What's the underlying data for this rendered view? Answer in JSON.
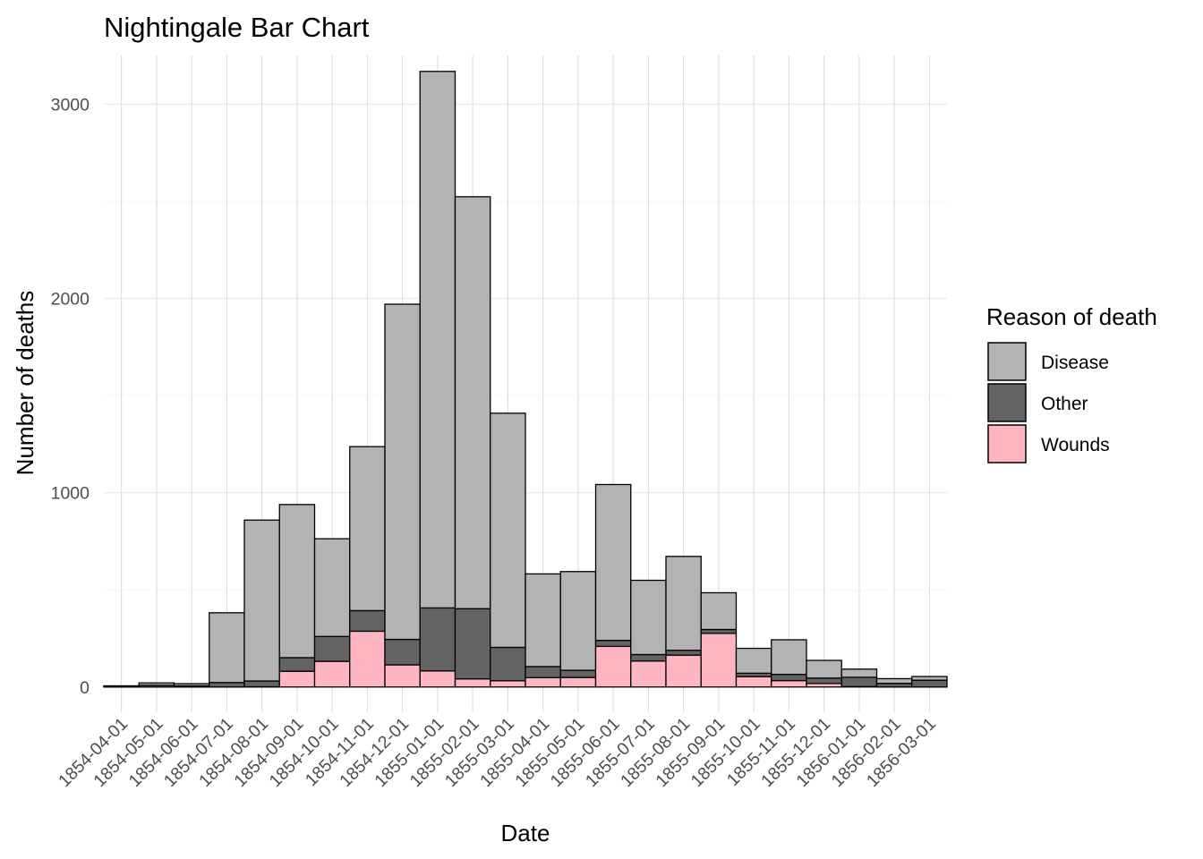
{
  "chart_data": {
    "type": "bar",
    "stacked": true,
    "title": "Nightingale Bar Chart",
    "xlabel": "Date",
    "ylabel": "Number of deaths",
    "ylim": [
      -130,
      3250
    ],
    "yticks": [
      0,
      1000,
      2000,
      3000
    ],
    "categories": [
      "1854-04-01",
      "1854-05-01",
      "1854-06-01",
      "1854-07-01",
      "1854-08-01",
      "1854-09-01",
      "1854-10-01",
      "1854-11-01",
      "1854-12-01",
      "1855-01-01",
      "1855-02-01",
      "1855-03-01",
      "1855-04-01",
      "1855-05-01",
      "1855-06-01",
      "1855-07-01",
      "1855-08-01",
      "1855-09-01",
      "1855-10-01",
      "1855-11-01",
      "1855-12-01",
      "1856-01-01",
      "1856-02-01",
      "1856-03-01"
    ],
    "legend_title": "Reason of death",
    "legend_position": "right",
    "series": [
      {
        "name": "Wounds",
        "color": "#FFB6C1",
        "values": [
          0,
          0,
          0,
          0,
          1,
          81,
          132,
          287,
          114,
          83,
          42,
          32,
          48,
          49,
          209,
          134,
          164,
          276,
          53,
          33,
          18,
          2,
          0,
          0
        ]
      },
      {
        "name": "Other",
        "color": "#636363",
        "values": [
          5,
          9,
          6,
          23,
          30,
          70,
          128,
          106,
          131,
          324,
          361,
          172,
          57,
          37,
          31,
          33,
          25,
          20,
          18,
          32,
          28,
          48,
          19,
          35
        ]
      },
      {
        "name": "Disease",
        "color": "#B3B3B3",
        "values": [
          1,
          12,
          11,
          359,
          828,
          788,
          503,
          844,
          1725,
          2761,
          2120,
          1205,
          477,
          508,
          802,
          382,
          483,
          189,
          128,
          178,
          91,
          42,
          24,
          19
        ]
      }
    ],
    "grid": true
  }
}
